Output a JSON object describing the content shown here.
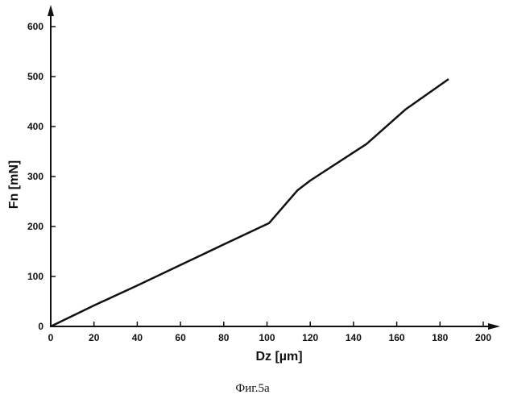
{
  "chart_data": {
    "type": "line",
    "xlabel": "Dz  [µm]",
    "ylabel": "Fn  [mN]",
    "xlim": [
      0,
      200
    ],
    "ylim": [
      0,
      600
    ],
    "xticks": [
      "0",
      "20",
      "40",
      "60",
      "80",
      "100",
      "120",
      "140",
      "160",
      "180",
      "200"
    ],
    "yticks": [
      "0",
      "100",
      "200",
      "300",
      "400",
      "500",
      "600"
    ],
    "grid": false,
    "series": [
      {
        "x": [
          0,
          20,
          40,
          60,
          80,
          101,
          114,
          120,
          146,
          164,
          184
        ],
        "y": [
          0,
          42,
          82,
          123,
          164,
          207,
          272,
          292,
          365,
          434,
          495
        ]
      }
    ]
  },
  "caption": "Фиг.5а"
}
